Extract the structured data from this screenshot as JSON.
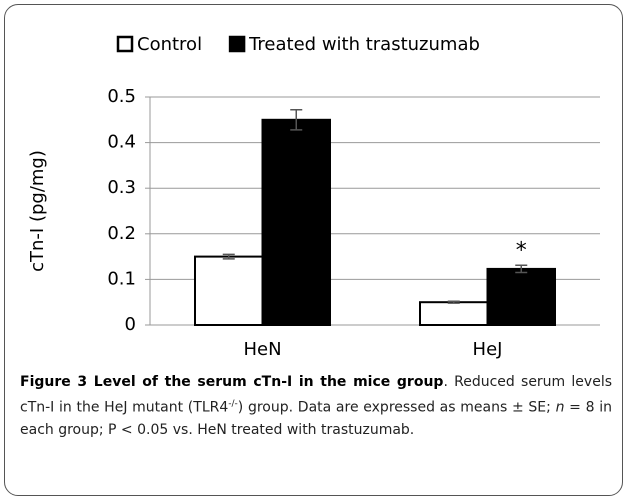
{
  "chart_data": {
    "type": "bar",
    "y_label": "cTn-I (pg/mg)",
    "categories": [
      "HeN",
      "HeJ"
    ],
    "series": [
      {
        "name": "Control",
        "color": "#ffffff",
        "values": [
          0.15,
          0.05
        ],
        "errors": [
          0.005,
          0.002
        ]
      },
      {
        "name": "Treated with trastuzumab",
        "color": "#000000",
        "values": [
          0.45,
          0.123
        ],
        "errors": [
          0.022,
          0.008
        ]
      }
    ],
    "annotation": "*",
    "ylim": [
      0,
      0.5
    ],
    "yticks": [
      0,
      0.1,
      0.2,
      0.3,
      0.4,
      0.5
    ],
    "grid": true,
    "legend": "top"
  },
  "caption": {
    "title": "Figure 3 Level of the serum cTn-I in the mice group",
    "text1": ". Reduced serum levels cTn-I in the HeJ mutant (TLR4",
    "sup": "-/-",
    "text2": ") group. Data are expressed as means ± SE; ",
    "n": "n",
    "text3": " = 8 in each group; P < 0.05 vs. HeN treated with trastuzumab."
  }
}
